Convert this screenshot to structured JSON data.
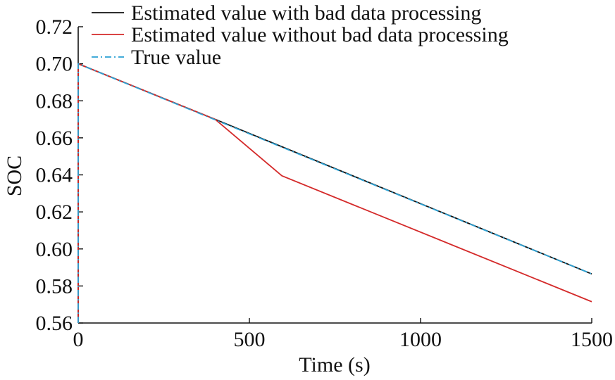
{
  "chart_data": {
    "type": "line",
    "title": "",
    "xlabel": "Time (s)",
    "ylabel": "SOC",
    "xlim": [
      0,
      1500
    ],
    "ylim": [
      0.56,
      0.72
    ],
    "xticks": [
      0,
      500,
      1000,
      1500
    ],
    "xtick_labels": [
      "0",
      "500",
      "1000",
      "1500"
    ],
    "yticks": [
      0.56,
      0.58,
      0.6,
      0.62,
      0.64,
      0.66,
      0.68,
      0.7,
      0.72
    ],
    "ytick_labels": [
      "0.56",
      "0.58",
      "0.60",
      "0.62",
      "0.64",
      "0.66",
      "0.68",
      "0.70",
      "0.72"
    ],
    "grid": false,
    "legend_position": "top-left",
    "series": [
      {
        "name": "Estimated value with bad data processing",
        "color": "#111111",
        "style": "solid",
        "x": [
          0,
          0,
          400,
          1500
        ],
        "y": [
          0.56,
          0.7,
          0.67,
          0.5865
        ]
      },
      {
        "name": "Estimated value without bad data processing",
        "color": "#d42a2a",
        "style": "solid",
        "x": [
          0,
          0,
          400,
          595,
          1500
        ],
        "y": [
          0.56,
          0.7,
          0.67,
          0.6395,
          0.5715
        ]
      },
      {
        "name": "True value",
        "color": "#2aa1d4",
        "style": "dashdot",
        "x": [
          0,
          0,
          1500
        ],
        "y": [
          0.56,
          0.7,
          0.5865
        ]
      }
    ]
  }
}
